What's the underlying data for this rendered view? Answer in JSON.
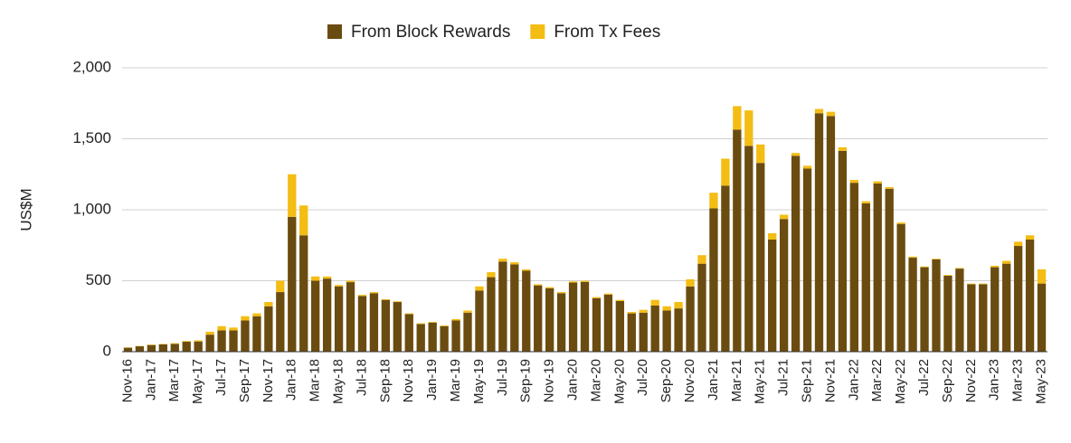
{
  "chart_data": {
    "type": "stacked_bar",
    "y_label": "US$M",
    "categories": [
      "Nov-16",
      null,
      "Jan-17",
      null,
      "Mar-17",
      null,
      "May-17",
      null,
      "Jul-17",
      null,
      "Sep-17",
      null,
      "Nov-17",
      null,
      "Jan-18",
      null,
      "Mar-18",
      null,
      "May-18",
      null,
      "Jul-18",
      null,
      "Sep-18",
      null,
      "Nov-18",
      null,
      "Jan-19",
      null,
      "Mar-19",
      null,
      "May-19",
      null,
      "Jul-19",
      null,
      "Sep-19",
      null,
      "Nov-19",
      null,
      "Jan-20",
      null,
      "Mar-20",
      null,
      "May-20",
      null,
      "Jul-20",
      null,
      "Sep-20",
      null,
      "Nov-20",
      null,
      "Jan-21",
      null,
      "Mar-21",
      null,
      "May-21",
      null,
      "Jul-21",
      null,
      "Sep-21",
      null,
      "Nov-21",
      null,
      "Jan-22",
      null,
      "Mar-22",
      null,
      "May-22",
      null,
      "Jul-22",
      null,
      "Sep-22",
      null,
      "Nov-22",
      null,
      "Jan-23",
      null,
      "Mar-23",
      null,
      "May-23"
    ],
    "series": [
      {
        "name": "From Block Rewards",
        "color": "#6b4c10",
        "values": [
          28,
          38,
          47,
          52,
          55,
          70,
          72,
          120,
          150,
          150,
          220,
          250,
          320,
          420,
          950,
          820,
          500,
          515,
          460,
          490,
          392,
          412,
          365,
          350,
          265,
          195,
          205,
          180,
          220,
          275,
          430,
          525,
          635,
          615,
          570,
          467,
          447,
          412,
          487,
          492,
          377,
          402,
          357,
          270,
          275,
          325,
          290,
          305,
          460,
          620,
          1010,
          1170,
          1565,
          1450,
          1330,
          790,
          935,
          1380,
          1290,
          1680,
          1660,
          1415,
          1190,
          1045,
          1185,
          1148,
          900,
          662,
          595,
          650,
          535,
          585,
          475,
          475,
          595,
          620,
          745,
          790,
          480
        ]
      },
      {
        "name": "From Tx Fees",
        "color": "#f4bd14",
        "values": [
          2,
          2,
          3,
          3,
          5,
          5,
          8,
          20,
          30,
          20,
          30,
          20,
          30,
          80,
          300,
          210,
          30,
          15,
          10,
          10,
          8,
          8,
          5,
          5,
          5,
          5,
          5,
          5,
          10,
          15,
          30,
          35,
          20,
          15,
          10,
          8,
          8,
          8,
          8,
          8,
          8,
          8,
          8,
          10,
          20,
          40,
          30,
          45,
          50,
          60,
          110,
          190,
          165,
          250,
          130,
          45,
          30,
          20,
          20,
          30,
          30,
          25,
          20,
          15,
          15,
          12,
          10,
          8,
          5,
          5,
          5,
          5,
          5,
          5,
          10,
          20,
          30,
          30,
          100
        ]
      }
    ],
    "ylim": [
      0,
      2000
    ],
    "yticks": [
      0,
      {
        "value": 500,
        "label": "500"
      },
      {
        "value": 1000,
        "label": "1,000"
      },
      {
        "value": 1500,
        "label": "1,500"
      },
      {
        "value": 2000,
        "label": "2,000"
      }
    ],
    "grid": true,
    "legend": "top"
  }
}
